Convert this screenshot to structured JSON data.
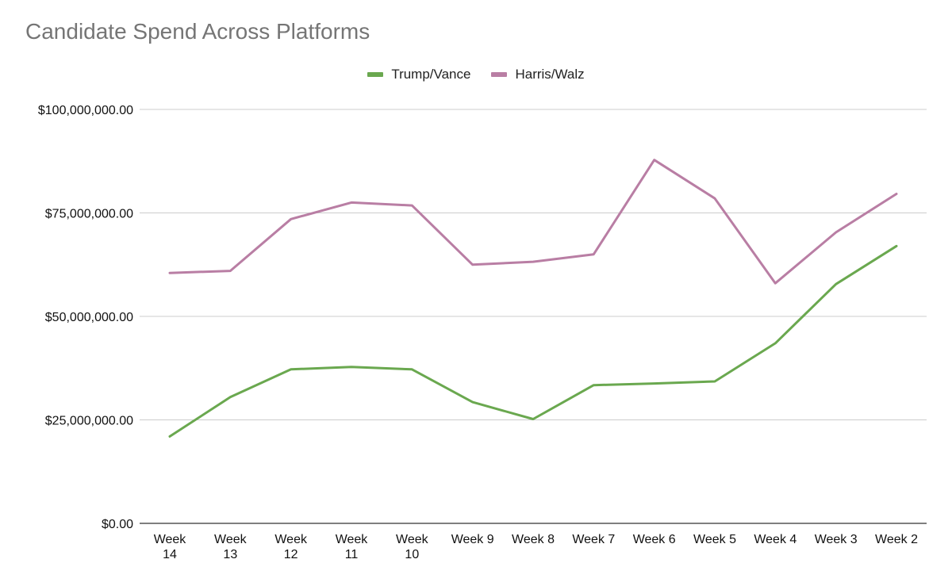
{
  "chart_data": {
    "type": "line",
    "title": "Candidate Spend Across Platforms",
    "xlabel": "",
    "ylabel": "",
    "categories": [
      "Week 14",
      "Week 13",
      "Week 12",
      "Week 11",
      "Week 10",
      "Week 9",
      "Week 8",
      "Week 7",
      "Week 6",
      "Week 5",
      "Week 4",
      "Week 3",
      "Week 2"
    ],
    "category_lines": [
      [
        "Week",
        "14"
      ],
      [
        "Week",
        "13"
      ],
      [
        "Week",
        "12"
      ],
      [
        "Week",
        "11"
      ],
      [
        "Week",
        "10"
      ],
      [
        "Week 9"
      ],
      [
        "Week 8"
      ],
      [
        "Week 7"
      ],
      [
        "Week 6"
      ],
      [
        "Week 5"
      ],
      [
        "Week 4"
      ],
      [
        "Week 3"
      ],
      [
        "Week 2"
      ]
    ],
    "series": [
      {
        "name": "Trump/Vance",
        "color": "#6aa84f",
        "values": [
          21000000,
          30500000,
          37200000,
          37800000,
          37200000,
          29300000,
          25200000,
          33400000,
          33800000,
          34300000,
          43500000,
          57800000,
          67000000
        ]
      },
      {
        "name": "Harris/Walz",
        "color": "#b97ea4",
        "values": [
          60500000,
          61000000,
          73500000,
          77500000,
          76800000,
          62500000,
          63200000,
          65000000,
          87800000,
          78500000,
          58000000,
          70300000,
          79600000
        ]
      }
    ],
    "ylim": [
      0,
      100000000
    ],
    "yticks": [
      0,
      25000000,
      50000000,
      75000000,
      100000000
    ],
    "ytick_labels": [
      "$0.00",
      "$25,000,000.00",
      "$50,000,000.00",
      "$75,000,000.00",
      "$100,000,000.00"
    ],
    "grid": true,
    "legend_position": "top-center"
  }
}
